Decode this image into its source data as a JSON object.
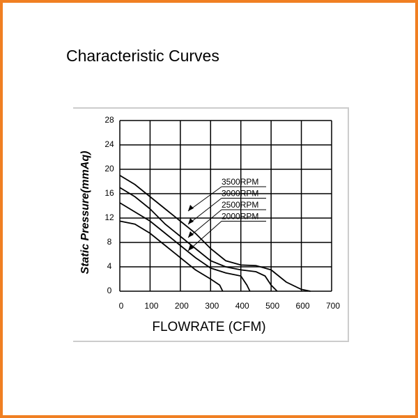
{
  "page": {
    "title": "Characteristic Curves"
  },
  "chart_data": {
    "type": "line",
    "x_label": "FLOWRATE (CFM)",
    "y_label": "Static  Pressure(mmAq)",
    "xlim": [
      0,
      700
    ],
    "xticks": [
      0,
      100,
      200,
      300,
      400,
      500,
      600,
      700
    ],
    "ylim": [
      0,
      28
    ],
    "yticks": [
      0,
      4,
      8,
      12,
      16,
      20,
      24,
      28
    ],
    "grid": true,
    "series": [
      {
        "name": "3500RPM",
        "color": "#000000",
        "x": [
          0,
          50,
          100,
          150,
          200,
          250,
          300,
          350,
          400,
          450,
          500,
          550,
          600,
          630
        ],
        "values": [
          19,
          17.5,
          15.5,
          13.5,
          11.5,
          9.5,
          7,
          5,
          4.3,
          4.2,
          3.5,
          1.5,
          0.3,
          0
        ]
      },
      {
        "name": "3000RPM",
        "color": "#000000",
        "x": [
          0,
          50,
          100,
          150,
          200,
          250,
          300,
          350,
          400,
          450,
          480,
          500,
          520
        ],
        "values": [
          17,
          15.5,
          13.5,
          11,
          9,
          7,
          5,
          4,
          3.5,
          3.2,
          2.5,
          1,
          0
        ]
      },
      {
        "name": "2500RPM",
        "color": "#000000",
        "x": [
          0,
          50,
          100,
          150,
          200,
          250,
          300,
          350,
          400,
          420,
          430
        ],
        "values": [
          14.5,
          13,
          11.5,
          9.5,
          7.5,
          5.5,
          3.8,
          3,
          2.5,
          1,
          0
        ]
      },
      {
        "name": "2000RPM",
        "color": "#000000",
        "x": [
          0,
          50,
          100,
          150,
          200,
          250,
          300,
          330,
          340
        ],
        "values": [
          11.5,
          11,
          9.5,
          7.5,
          5.5,
          3.5,
          2,
          1,
          0
        ]
      }
    ]
  }
}
